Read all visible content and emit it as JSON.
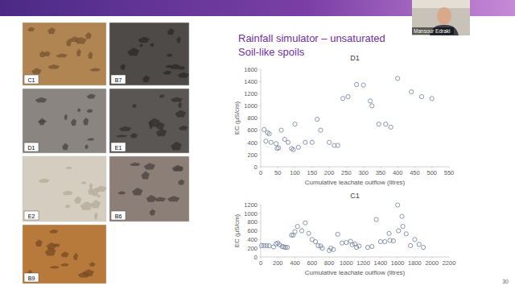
{
  "slide": {
    "title_lines": [
      "Rainfall simulator – unsaturated",
      "Soil-like spoils"
    ],
    "photos": [
      "C1",
      "B7",
      "D1",
      "E1",
      "E2",
      "B6",
      "B9"
    ],
    "speaker": "Mansour Edraki",
    "page_number": 30
  },
  "chart_data": [
    {
      "type": "scatter",
      "title": "D1",
      "x_label": "Cumulative leachate outflow (litres)",
      "y_label": "EC (µS/cm)",
      "x": [
        10,
        15,
        20,
        25,
        30,
        45,
        48,
        52,
        60,
        70,
        80,
        90,
        95,
        100,
        110,
        130,
        150,
        165,
        175,
        200,
        215,
        225,
        240,
        255,
        280,
        300,
        320,
        325,
        345,
        365,
        380,
        400,
        440,
        470,
        500
      ],
      "values": [
        610,
        420,
        560,
        540,
        400,
        380,
        300,
        310,
        600,
        450,
        400,
        300,
        280,
        700,
        320,
        400,
        400,
        780,
        600,
        400,
        350,
        350,
        1120,
        1150,
        1350,
        1340,
        1080,
        1000,
        700,
        700,
        650,
        1450,
        1230,
        1150,
        1120
      ],
      "color": "#6d7f99",
      "marker": "circle-open",
      "xlim": [
        0,
        550
      ],
      "xticks": [
        0,
        50,
        100,
        150,
        200,
        250,
        300,
        350,
        400,
        450,
        500,
        550
      ],
      "ylim": [
        0,
        1600
      ],
      "yticks": [
        0,
        200,
        400,
        600,
        800,
        1000,
        1200,
        1400,
        1600
      ],
      "grid": false
    },
    {
      "type": "scatter",
      "title": "C1",
      "x_label": "Cumulative leachate outflow (litres)",
      "y_label": "EC (µS/cm)",
      "x": [
        10,
        40,
        70,
        100,
        150,
        180,
        200,
        220,
        250,
        270,
        290,
        310,
        360,
        380,
        400,
        430,
        480,
        520,
        560,
        600,
        640,
        670,
        700,
        720,
        800,
        820,
        850,
        900,
        950,
        1000,
        1050,
        1070,
        1100,
        1120,
        1150,
        1250,
        1300,
        1350,
        1400,
        1450,
        1500,
        1510,
        1550,
        1600,
        1610,
        1650,
        1660,
        1700,
        1750,
        1800,
        1850,
        1900
      ],
      "values": [
        260,
        260,
        260,
        255,
        230,
        300,
        320,
        280,
        240,
        230,
        220,
        220,
        500,
        500,
        580,
        700,
        600,
        780,
        540,
        400,
        350,
        260,
        250,
        200,
        150,
        200,
        170,
        520,
        320,
        330,
        360,
        280,
        300,
        220,
        250,
        220,
        240,
        860,
        350,
        350,
        540,
        380,
        370,
        1190,
        600,
        930,
        700,
        530,
        260,
        400,
        290,
        220
      ],
      "color": "#6d7f99",
      "marker": "circle-open",
      "xlim": [
        0,
        2200
      ],
      "xticks": [
        0,
        200,
        400,
        600,
        800,
        1000,
        1200,
        1400,
        1600,
        1800,
        2000,
        2200
      ],
      "ylim": [
        0,
        1200
      ],
      "yticks": [
        0,
        200,
        400,
        600,
        800,
        1000,
        1200
      ],
      "grid": false
    }
  ]
}
